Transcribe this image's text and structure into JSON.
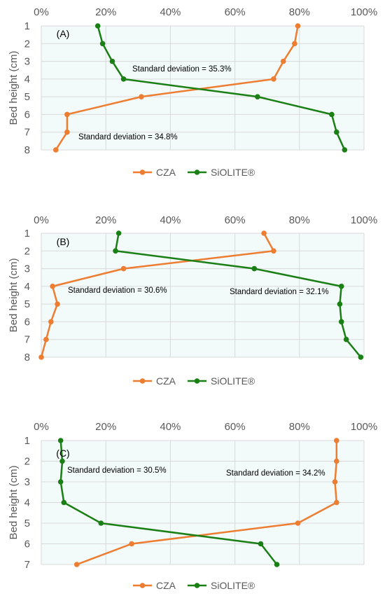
{
  "colors": {
    "cza": "#ED7D31",
    "siolite": "#1A7F14",
    "plot_bg": "#F3FAFA",
    "grid": "#D9D9D9",
    "text": "#595959"
  },
  "chart_data": [
    {
      "type": "line",
      "panel_label": "(A)",
      "ylabel": "Bed height (cm)",
      "x_axis": {
        "ticks": [
          "0%",
          "20%",
          "40%",
          "60%",
          "80%",
          "100%"
        ],
        "range": [
          0,
          100
        ],
        "position": "top"
      },
      "y_axis": {
        "ticks": [
          "1",
          "2",
          "3",
          "4",
          "5",
          "6",
          "7",
          "8"
        ],
        "range": [
          1,
          8
        ],
        "inverted": true
      },
      "series": [
        {
          "name": "CZA",
          "color": "#ED7D31",
          "points": [
            [
              79.5,
              1
            ],
            [
              78.5,
              2
            ],
            [
              75,
              3
            ],
            [
              72,
              4
            ],
            [
              31,
              5
            ],
            [
              8,
              6
            ],
            [
              8,
              7
            ],
            [
              4.5,
              8
            ]
          ]
        },
        {
          "name": "SiOLITE®",
          "color": "#1A7F14",
          "points": [
            [
              17.5,
              1
            ],
            [
              19,
              2
            ],
            [
              22,
              3
            ],
            [
              25.5,
              4
            ],
            [
              67,
              5
            ],
            [
              90,
              6
            ],
            [
              91.5,
              7
            ],
            [
              94,
              8
            ]
          ]
        }
      ],
      "annotations": [
        "Standard deviation = 35.3%",
        "Standard deviation = 34.8%"
      ],
      "legend": [
        "CZA",
        "SiOLITE®"
      ]
    },
    {
      "type": "line",
      "panel_label": "(B)",
      "ylabel": "Bed height (cm)",
      "x_axis": {
        "ticks": [
          "0%",
          "20%",
          "40%",
          "60%",
          "80%",
          "100%"
        ],
        "range": [
          0,
          100
        ],
        "position": "top"
      },
      "y_axis": {
        "ticks": [
          "1",
          "2",
          "3",
          "4",
          "5",
          "6",
          "7",
          "8"
        ],
        "range": [
          1,
          8
        ],
        "inverted": true
      },
      "series": [
        {
          "name": "CZA",
          "color": "#ED7D31",
          "points": [
            [
              69,
              1
            ],
            [
              72,
              2
            ],
            [
              25.5,
              3
            ],
            [
              3.5,
              4
            ],
            [
              5,
              5
            ],
            [
              3,
              6
            ],
            [
              1.5,
              7
            ],
            [
              0,
              8
            ]
          ]
        },
        {
          "name": "SiOLITE®",
          "color": "#1A7F14",
          "points": [
            [
              24,
              1
            ],
            [
              23,
              2
            ],
            [
              66,
              3
            ],
            [
              93,
              4
            ],
            [
              92.5,
              5
            ],
            [
              93,
              6
            ],
            [
              94.5,
              7
            ],
            [
              99,
              8
            ]
          ]
        }
      ],
      "annotations": [
        "Standard deviation = 30.6%",
        "Standard deviation = 32.1%"
      ],
      "legend": [
        "CZA",
        "SiOLITE®"
      ]
    },
    {
      "type": "line",
      "panel_label": "(C)",
      "ylabel": "Bed height (cm)",
      "x_axis": {
        "ticks": [
          "0%",
          "20%",
          "40%",
          "60%",
          "80%",
          "100%"
        ],
        "range": [
          0,
          100
        ],
        "position": "top"
      },
      "y_axis": {
        "ticks": [
          "1",
          "2",
          "3",
          "4",
          "5",
          "6",
          "7"
        ],
        "range": [
          1,
          7
        ],
        "inverted": true
      },
      "series": [
        {
          "name": "CZA",
          "color": "#ED7D31",
          "points": [
            [
              91.5,
              1
            ],
            [
              91.5,
              2
            ],
            [
              91,
              3
            ],
            [
              91.5,
              4
            ],
            [
              79.5,
              5
            ],
            [
              28,
              6
            ],
            [
              11,
              7
            ]
          ]
        },
        {
          "name": "SiOLITE®",
          "color": "#1A7F14",
          "points": [
            [
              6,
              1
            ],
            [
              6.5,
              2
            ],
            [
              6,
              3
            ],
            [
              7,
              4
            ],
            [
              18.5,
              5
            ],
            [
              68,
              6
            ],
            [
              73,
              7
            ]
          ]
        }
      ],
      "annotations": [
        "Standard deviation = 30.5%",
        "Standard deviation = 34.2%"
      ],
      "legend": [
        "CZA",
        "SiOLITE®"
      ]
    }
  ]
}
